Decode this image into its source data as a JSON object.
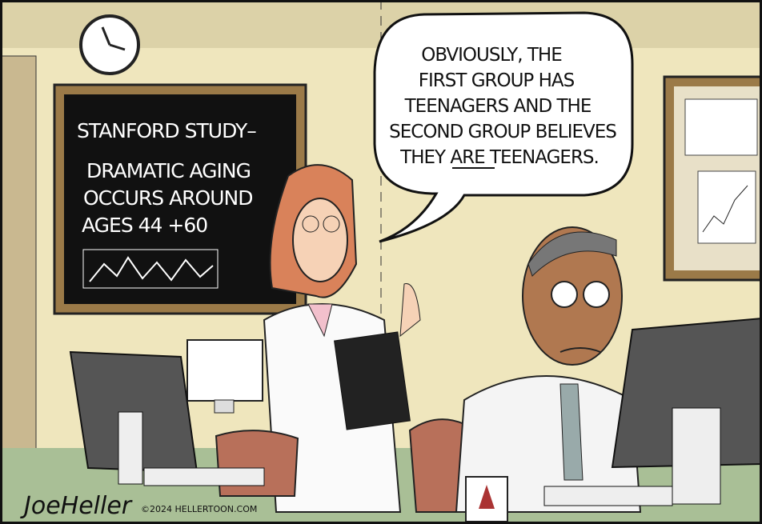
{
  "chalkboard": {
    "lines": [
      "STANFORD STUDY–",
      "DRAMATIC AGING",
      "OCCURS AROUND",
      "AGES 44 +60"
    ]
  },
  "speech_bubble": {
    "lines": [
      "OBVIOUSLY, THE",
      "FIRST GROUP HAS",
      "TEENAGERS AND THE",
      "SECOND GROUP BELIEVES",
      "THEY ARE TEENAGERS."
    ]
  },
  "signature": "JoeHeller",
  "copyright": "©2024 HELLERTOON.COM"
}
